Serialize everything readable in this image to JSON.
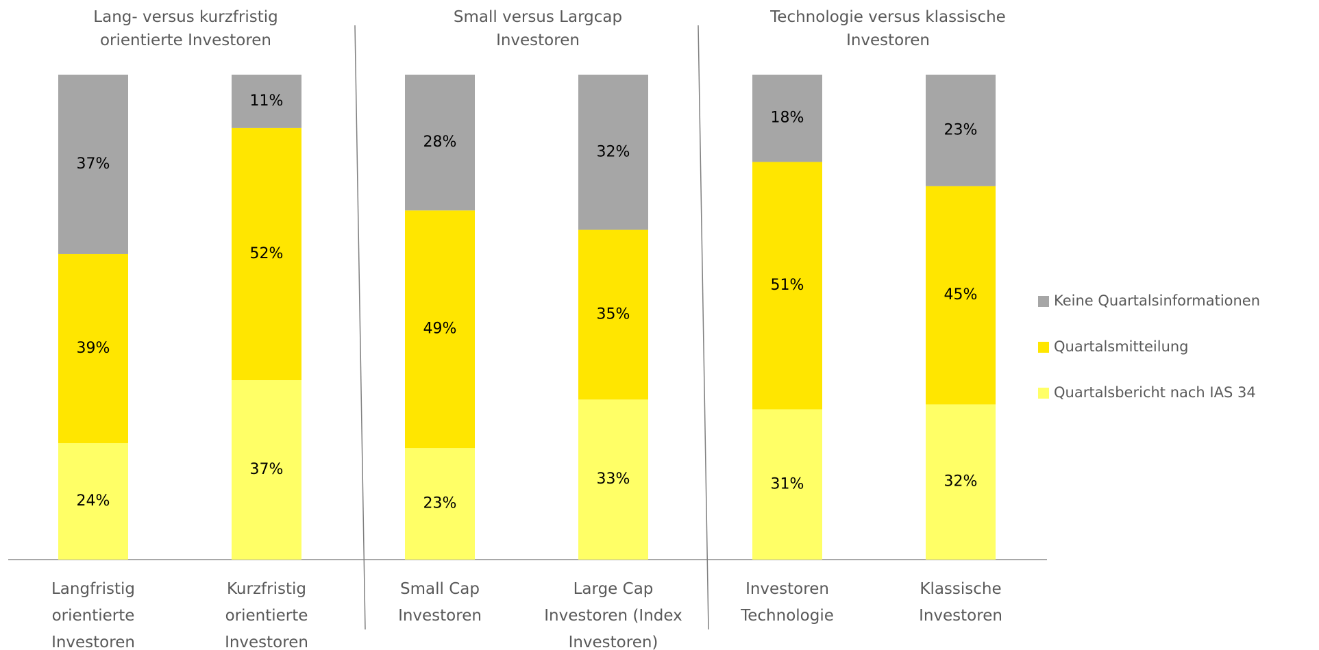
{
  "chart_data": {
    "type": "stacked_bar",
    "groups": [
      {
        "title": "Lang- versus kurzfristig\norientierte Investoren"
      },
      {
        "title": "Small versus Largcap\nInvestoren"
      },
      {
        "title": "Technologie versus klassische\nInvestoren"
      }
    ],
    "categories": [
      "Langfristig\norientierte\nInvestoren",
      "Kurzfristig\norientierte\nInvestoren",
      "Small Cap\nInvestoren",
      "Large Cap\nInvestoren (Index\nInvestoren)",
      "Investoren\nTechnologie",
      "Klassische\nInvestoren"
    ],
    "series": [
      {
        "name": "Quartalsbericht nach IAS 34",
        "color": "#ffff66",
        "values": [
          24,
          37,
          23,
          33,
          31,
          32
        ],
        "value_labels": [
          "24%",
          "37%",
          "23%",
          "33%",
          "31%",
          "32%"
        ]
      },
      {
        "name": "Quartalsmitteilung",
        "color": "#ffe600",
        "values": [
          39,
          52,
          49,
          35,
          51,
          45
        ],
        "value_labels": [
          "39%",
          "52%",
          "49%",
          "35%",
          "51%",
          "45%"
        ]
      },
      {
        "name": "Keine Quartalsinformationen",
        "color": "#a6a6a6",
        "values": [
          37,
          11,
          28,
          32,
          18,
          23
        ],
        "value_labels": [
          "37%",
          "11%",
          "28%",
          "32%",
          "18%",
          "23%"
        ]
      }
    ],
    "ylim": [
      0,
      100
    ],
    "legend": "right"
  }
}
